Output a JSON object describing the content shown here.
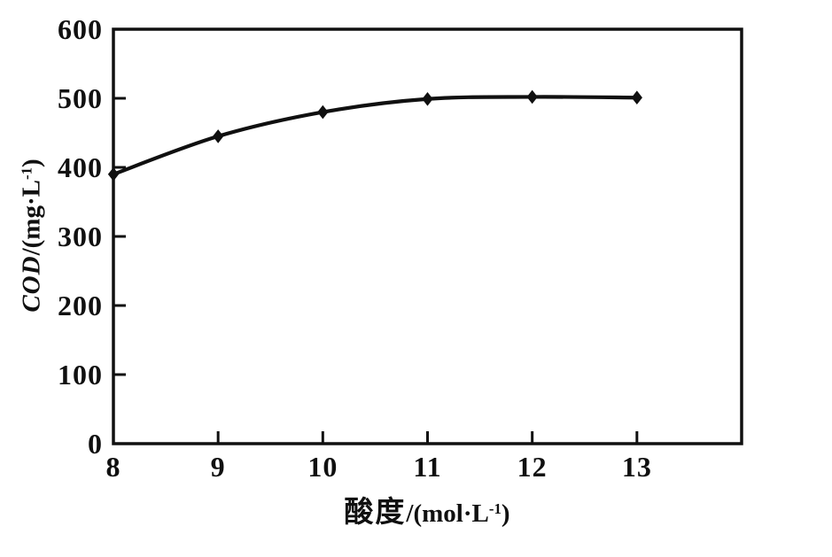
{
  "page": {
    "background": "#ffffff",
    "ink_color": "#101010"
  },
  "chart_data": {
    "type": "line",
    "title": "",
    "x": [
      8,
      9,
      10,
      11,
      12,
      13
    ],
    "series": [
      {
        "name": "COD",
        "values": [
          390,
          445,
          480,
          499,
          502,
          501
        ]
      }
    ],
    "xlabel": "酸度/(mol·L⁻¹)",
    "ylabel": "COD/(mg·L⁻¹)",
    "xlim": [
      8,
      14
    ],
    "ylim": [
      0,
      600
    ],
    "x_ticks": [
      8,
      9,
      10,
      11,
      12,
      13
    ],
    "y_ticks": [
      0,
      100,
      200,
      300,
      400,
      500,
      600
    ],
    "grid": false,
    "legend": "none",
    "marker": "diamond",
    "line_color": "#101010",
    "plot_border": true
  },
  "ylabel_parts": {
    "quantity": "COD",
    "mid": "/(mg·L",
    "sup": "-1",
    "end": ")"
  },
  "xlabel_parts": {
    "quantity": "酸度",
    "mid": "/(mol·L",
    "sup": "-1",
    "end": ")"
  }
}
